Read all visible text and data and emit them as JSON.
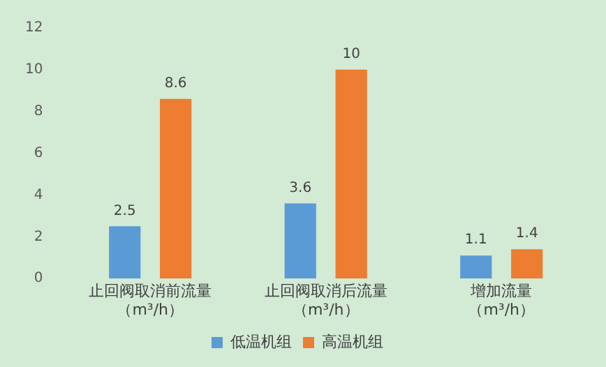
{
  "chart_data": {
    "type": "bar",
    "categories": [
      "止回阀取消前流量（m³/h）",
      "止回阀取消后流量（m³/h）",
      "增加流量（m³/h）"
    ],
    "series": [
      {
        "name": "低温机组",
        "color": "#5b9bd5",
        "values": [
          2.5,
          3.6,
          1.1
        ]
      },
      {
        "name": "高温机组",
        "color": "#ed7d31",
        "values": [
          8.6,
          10,
          1.4
        ]
      }
    ],
    "ylim": [
      0,
      12
    ],
    "yticks": [
      0,
      2,
      4,
      6,
      8,
      10,
      12
    ],
    "grid": false,
    "legend": "bottom",
    "data_labels": true
  }
}
